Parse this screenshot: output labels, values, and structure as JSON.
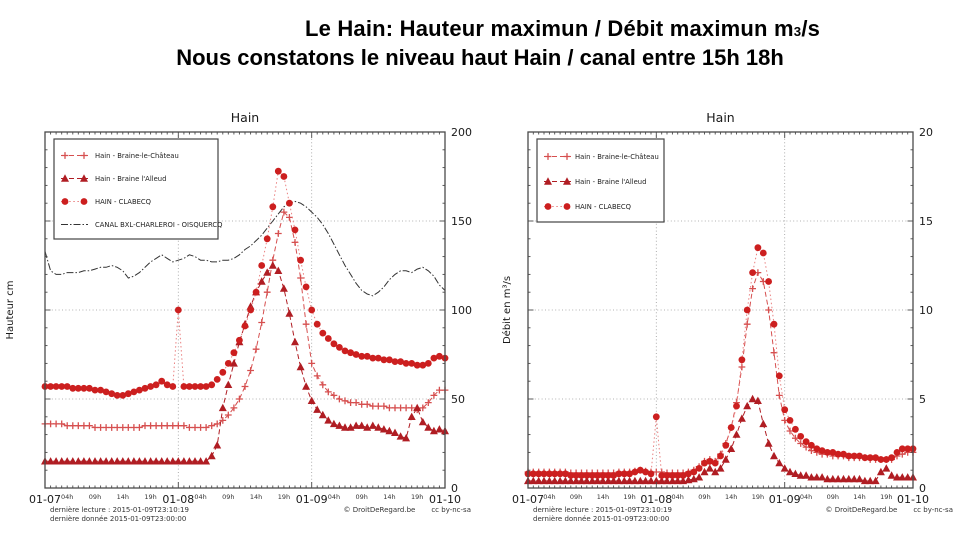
{
  "title": {
    "line1_a": "Le Hain: Hauteur maximun  / Débit maximun m",
    "line1_sub": "3",
    "line1_b": "/s",
    "line2": "Nous constatons le niveau haut Hain / canal entre 15h 18h"
  },
  "footer": {
    "lecture": "dernière lecture : 2015-01-09T23:10:19",
    "donnee": "dernière donnée  2015-01-09T23:00:00",
    "copyright": "© DroitDeRegard.be",
    "license": "cc by-nc-sa"
  },
  "colors": {
    "accent_red": "#cc1f1f",
    "light_red": "#d64f4f",
    "dark_red": "#b01d23",
    "canal_black": "#333333",
    "grid_gray": "#9a9a9a",
    "frame": "#4a4a4a"
  },
  "chart_data": [
    {
      "type": "line",
      "title": "Hain",
      "ylabel": "Hauteur cm",
      "xlabel": "",
      "x_unit": "hours from 2015-01-07 00:00",
      "x_range_hours": [
        0,
        72
      ],
      "ylim": [
        0,
        200
      ],
      "y_ticks": [
        0,
        50,
        100,
        150,
        200
      ],
      "y_minor_step": 10,
      "grid": {
        "h_at": [
          50,
          100,
          150
        ],
        "v_at": [
          24,
          48
        ]
      },
      "legend_position": "upper-left",
      "x_day_ticks": [
        {
          "h": 0,
          "label": "01-07"
        },
        {
          "h": 24,
          "label": "01-08"
        },
        {
          "h": 48,
          "label": "01-09"
        },
        {
          "h": 72,
          "label": "01-10"
        }
      ],
      "x_hour_ticks": [
        {
          "h": 4,
          "label": "04h"
        },
        {
          "h": 9,
          "label": "09h"
        },
        {
          "h": 14,
          "label": "14h"
        },
        {
          "h": 19,
          "label": "19h"
        },
        {
          "h": 28,
          "label": "04h"
        },
        {
          "h": 33,
          "label": "09h"
        },
        {
          "h": 38,
          "label": "14h"
        },
        {
          "h": 43,
          "label": "19h"
        },
        {
          "h": 52,
          "label": "04h"
        },
        {
          "h": 57,
          "label": "09h"
        },
        {
          "h": 62,
          "label": "14h"
        },
        {
          "h": 67,
          "label": "19h"
        }
      ],
      "series": [
        {
          "name": "Hain - Braine-le-Château",
          "marker": "plus",
          "color": "#d64f4f",
          "line": "dash",
          "values": [
            36,
            36,
            36,
            36,
            35,
            35,
            35,
            35,
            35,
            34,
            34,
            34,
            34,
            34,
            34,
            34,
            34,
            34,
            35,
            35,
            35,
            35,
            35,
            35,
            35,
            35,
            34,
            34,
            34,
            34,
            35,
            36,
            38,
            41,
            45,
            50,
            57,
            66,
            78,
            93,
            110,
            128,
            143,
            155,
            152,
            138,
            118,
            92,
            70,
            63,
            58,
            54,
            52,
            50,
            49,
            48,
            48,
            47,
            47,
            46,
            46,
            46,
            45,
            45,
            45,
            45,
            45,
            44,
            45,
            48,
            52,
            55,
            55
          ]
        },
        {
          "name": "Hain - Braine l'Alleud",
          "marker": "triangle",
          "color": "#b01d23",
          "line": "dash",
          "values": [
            15,
            15,
            15,
            15,
            15,
            15,
            15,
            15,
            15,
            15,
            15,
            15,
            15,
            15,
            15,
            15,
            15,
            15,
            15,
            15,
            15,
            15,
            15,
            15,
            15,
            15,
            15,
            15,
            15,
            15,
            18,
            24,
            45,
            58,
            70,
            82,
            92,
            102,
            110,
            116,
            121,
            125,
            122,
            112,
            98,
            82,
            68,
            57,
            49,
            44,
            41,
            38,
            36,
            35,
            34,
            34,
            35,
            35,
            34,
            35,
            34,
            33,
            32,
            31,
            29,
            28,
            40,
            45,
            37,
            34,
            32,
            33,
            32
          ]
        },
        {
          "name": "HAIN - CLABECQ",
          "marker": "circle",
          "color": "#cc1f1f",
          "line": "dot",
          "line_color": "#ea8080",
          "values": [
            57,
            57,
            57,
            57,
            57,
            56,
            56,
            56,
            56,
            55,
            55,
            54,
            53,
            52,
            52,
            53,
            54,
            55,
            56,
            57,
            58,
            60,
            58,
            57,
            100,
            57,
            57,
            57,
            57,
            57,
            58,
            61,
            65,
            70,
            76,
            83,
            91,
            100,
            110,
            125,
            140,
            158,
            178,
            175,
            160,
            145,
            128,
            113,
            100,
            92,
            87,
            84,
            81,
            79,
            77,
            76,
            75,
            74,
            74,
            73,
            73,
            72,
            72,
            71,
            71,
            70,
            70,
            69,
            69,
            70,
            73,
            74,
            73
          ]
        },
        {
          "name": "CANAL BXL-CHARLEROI - OISQUERCQ",
          "marker": "none",
          "color": "#333333",
          "line": "dashdot",
          "values": [
            133,
            122,
            120,
            120,
            121,
            121,
            121,
            122,
            122,
            123,
            124,
            124,
            125,
            124,
            122,
            118,
            119,
            121,
            124,
            127,
            129,
            131,
            129,
            127,
            128,
            129,
            131,
            130,
            128,
            128,
            127,
            127,
            128,
            128,
            129,
            131,
            134,
            136,
            139,
            142,
            146,
            150,
            154,
            158,
            160,
            161,
            160,
            158,
            155,
            152,
            148,
            143,
            137,
            131,
            125,
            120,
            115,
            111,
            109,
            108,
            110,
            113,
            117,
            120,
            122,
            122,
            121,
            123,
            124,
            122,
            119,
            114,
            111
          ]
        }
      ]
    },
    {
      "type": "line",
      "title": "Hain",
      "ylabel": "Débit en m³/s",
      "xlabel": "",
      "x_unit": "hours from 2015-01-07 00:00",
      "x_range_hours": [
        0,
        72
      ],
      "ylim": [
        0,
        20
      ],
      "y_ticks": [
        0,
        5,
        10,
        15,
        20
      ],
      "y_minor_step": 1,
      "grid": {
        "h_at": [
          5,
          10,
          15
        ],
        "v_at": [
          24,
          48
        ]
      },
      "legend_position": "upper-left",
      "x_day_ticks": [
        {
          "h": 0,
          "label": "01-07"
        },
        {
          "h": 24,
          "label": "01-08"
        },
        {
          "h": 48,
          "label": "01-09"
        },
        {
          "h": 72,
          "label": "01-10"
        }
      ],
      "x_hour_ticks": [
        {
          "h": 4,
          "label": "04h"
        },
        {
          "h": 9,
          "label": "09h"
        },
        {
          "h": 14,
          "label": "14h"
        },
        {
          "h": 19,
          "label": "19h"
        },
        {
          "h": 28,
          "label": "04h"
        },
        {
          "h": 33,
          "label": "09h"
        },
        {
          "h": 38,
          "label": "14h"
        },
        {
          "h": 43,
          "label": "19h"
        },
        {
          "h": 52,
          "label": "04h"
        },
        {
          "h": 57,
          "label": "09h"
        },
        {
          "h": 62,
          "label": "14h"
        },
        {
          "h": 67,
          "label": "19h"
        }
      ],
      "series": [
        {
          "name": "Hain - Braine-le-Château",
          "marker": "plus",
          "color": "#d64f4f",
          "line": "dash",
          "values": [
            0.9,
            0.9,
            0.9,
            0.9,
            0.9,
            0.9,
            0.9,
            0.9,
            0.85,
            0.85,
            0.85,
            0.85,
            0.85,
            0.85,
            0.85,
            0.85,
            0.85,
            0.9,
            0.9,
            0.9,
            0.95,
            1.0,
            0.95,
            0.9,
            0.9,
            0.9,
            0.85,
            0.85,
            0.85,
            0.85,
            0.9,
            1.0,
            1.2,
            1.5,
            1.6,
            1.5,
            1.9,
            2.5,
            3.4,
            4.8,
            6.8,
            9.2,
            11.2,
            12.1,
            11.6,
            10.0,
            7.6,
            5.2,
            3.8,
            3.2,
            2.8,
            2.5,
            2.3,
            2.1,
            2.0,
            1.9,
            1.9,
            1.8,
            1.8,
            1.8,
            1.7,
            1.7,
            1.7,
            1.7,
            1.6,
            1.6,
            1.6,
            1.6,
            1.6,
            1.8,
            1.9,
            2.0,
            2.0
          ]
        },
        {
          "name": "Hain - Braine l'Alleud",
          "marker": "triangle",
          "color": "#b01d23",
          "line": "dash",
          "values": [
            0.4,
            0.4,
            0.4,
            0.4,
            0.4,
            0.4,
            0.4,
            0.4,
            0.4,
            0.4,
            0.4,
            0.4,
            0.4,
            0.4,
            0.4,
            0.4,
            0.4,
            0.4,
            0.4,
            0.4,
            0.4,
            0.4,
            0.4,
            0.4,
            0.4,
            0.4,
            0.4,
            0.4,
            0.4,
            0.4,
            0.45,
            0.5,
            0.6,
            0.9,
            1.1,
            0.9,
            1.1,
            1.6,
            2.2,
            3.0,
            3.9,
            4.6,
            5.0,
            4.9,
            3.6,
            2.5,
            1.8,
            1.4,
            1.1,
            0.9,
            0.8,
            0.7,
            0.7,
            0.6,
            0.6,
            0.6,
            0.5,
            0.5,
            0.5,
            0.5,
            0.5,
            0.5,
            0.5,
            0.4,
            0.4,
            0.4,
            0.9,
            1.1,
            0.7,
            0.6,
            0.6,
            0.6,
            0.6
          ]
        },
        {
          "name": "HAIN - CLABECQ",
          "marker": "circle",
          "color": "#cc1f1f",
          "line": "dot",
          "line_color": "#ea8080",
          "values": [
            0.8,
            0.8,
            0.8,
            0.8,
            0.8,
            0.8,
            0.8,
            0.8,
            0.7,
            0.7,
            0.7,
            0.7,
            0.7,
            0.7,
            0.7,
            0.7,
            0.7,
            0.8,
            0.8,
            0.8,
            0.9,
            1.0,
            0.9,
            0.8,
            4.0,
            0.7,
            0.7,
            0.7,
            0.7,
            0.7,
            0.8,
            0.9,
            1.1,
            1.4,
            1.5,
            1.4,
            1.8,
            2.4,
            3.4,
            4.6,
            7.2,
            10.0,
            12.1,
            13.5,
            13.2,
            11.6,
            9.2,
            6.3,
            4.4,
            3.8,
            3.3,
            2.9,
            2.6,
            2.4,
            2.2,
            2.1,
            2.0,
            2.0,
            1.9,
            1.9,
            1.8,
            1.8,
            1.8,
            1.7,
            1.7,
            1.7,
            1.6,
            1.6,
            1.7,
            2.0,
            2.2,
            2.2,
            2.2
          ]
        }
      ]
    }
  ]
}
